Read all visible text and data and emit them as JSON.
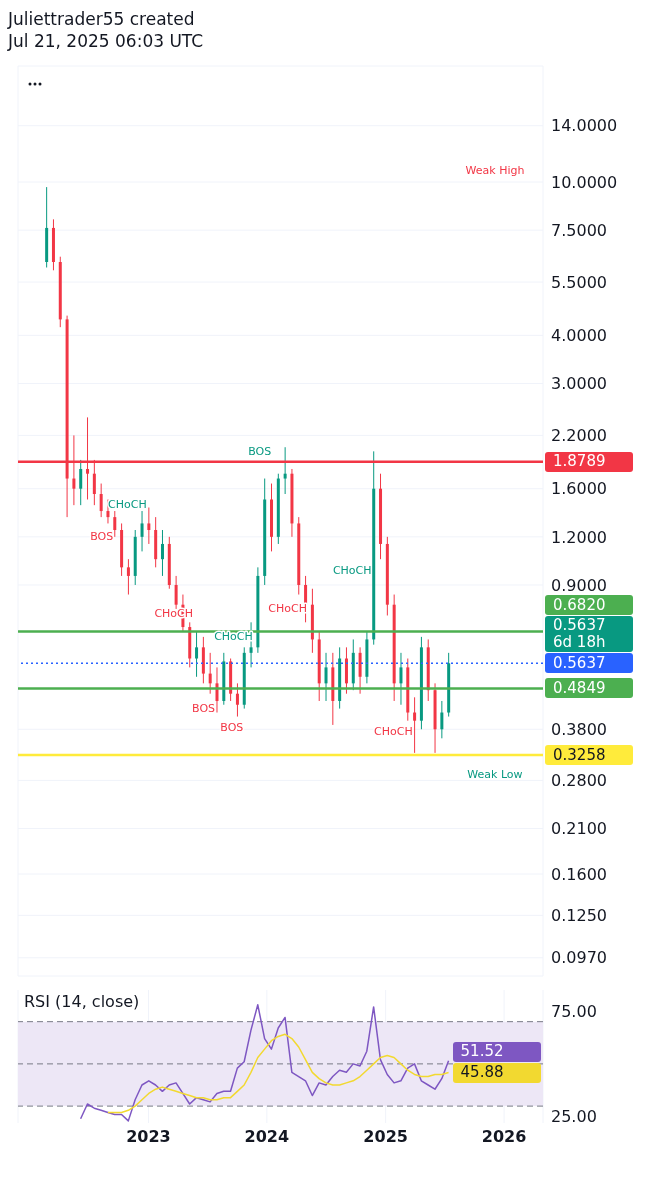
{
  "chart_data": [
    {
      "type": "candlestick",
      "title": "Juliettrader55 created",
      "subtitle": "Jul 21, 2025 06:03 UTC",
      "x": [
        "2022-02-21",
        "2022-03-14",
        "2022-04-04",
        "2022-04-25",
        "2022-05-16",
        "2022-06-06",
        "2022-06-27",
        "2022-07-18",
        "2022-08-08",
        "2022-08-29",
        "2022-09-19",
        "2022-10-10",
        "2022-10-31",
        "2022-11-21",
        "2022-12-12",
        "2023-01-02",
        "2023-01-23",
        "2023-02-13",
        "2023-03-06",
        "2023-03-27",
        "2023-04-17",
        "2023-05-08",
        "2023-05-29",
        "2023-06-19",
        "2023-07-10",
        "2023-07-31",
        "2023-08-21",
        "2023-09-11",
        "2023-10-02",
        "2023-10-23",
        "2023-11-13",
        "2023-12-04",
        "2023-12-25",
        "2024-01-15",
        "2024-02-05",
        "2024-02-26",
        "2024-03-18",
        "2024-04-08",
        "2024-04-29",
        "2024-05-20",
        "2024-06-10",
        "2024-07-01",
        "2024-07-22",
        "2024-08-12",
        "2024-09-02",
        "2024-09-23",
        "2024-10-14",
        "2024-11-04",
        "2024-11-25",
        "2024-12-16",
        "2025-01-06",
        "2025-01-27",
        "2025-02-17",
        "2025-03-10",
        "2025-03-31",
        "2025-04-21",
        "2025-05-12",
        "2025-06-02",
        "2025-06-23",
        "2025-07-14"
      ],
      "ohlc": [
        [
          6.2,
          9.7,
          6.0,
          7.6
        ],
        [
          7.6,
          8.0,
          5.9,
          6.2
        ],
        [
          6.2,
          6.4,
          4.2,
          4.4
        ],
        [
          4.4,
          4.5,
          1.35,
          1.7
        ],
        [
          1.7,
          2.2,
          1.45,
          1.6
        ],
        [
          1.6,
          1.9,
          1.45,
          1.8
        ],
        [
          1.8,
          2.45,
          1.5,
          1.75
        ],
        [
          1.75,
          1.9,
          1.45,
          1.55
        ],
        [
          1.55,
          1.65,
          1.35,
          1.4
        ],
        [
          1.4,
          1.5,
          1.3,
          1.35
        ],
        [
          1.35,
          1.4,
          1.2,
          1.25
        ],
        [
          1.25,
          1.3,
          0.95,
          1.0
        ],
        [
          1.0,
          1.05,
          0.85,
          0.95
        ],
        [
          0.95,
          1.25,
          0.9,
          1.2
        ],
        [
          1.2,
          1.4,
          1.1,
          1.3
        ],
        [
          1.3,
          1.43,
          1.15,
          1.25
        ],
        [
          1.25,
          1.35,
          1.0,
          1.05
        ],
        [
          1.05,
          1.25,
          0.95,
          1.15
        ],
        [
          1.15,
          1.2,
          0.88,
          0.9
        ],
        [
          0.9,
          0.95,
          0.78,
          0.8
        ],
        [
          0.8,
          0.85,
          0.68,
          0.7
        ],
        [
          0.7,
          0.72,
          0.55,
          0.58
        ],
        [
          0.58,
          0.68,
          0.52,
          0.62
        ],
        [
          0.62,
          0.66,
          0.5,
          0.53
        ],
        [
          0.53,
          0.6,
          0.47,
          0.5
        ],
        [
          0.5,
          0.55,
          0.42,
          0.45
        ],
        [
          0.45,
          0.6,
          0.44,
          0.57
        ],
        [
          0.57,
          0.58,
          0.45,
          0.47
        ],
        [
          0.47,
          0.5,
          0.41,
          0.44
        ],
        [
          0.44,
          0.62,
          0.43,
          0.6
        ],
        [
          0.6,
          0.72,
          0.55,
          0.62
        ],
        [
          0.62,
          1.0,
          0.6,
          0.95
        ],
        [
          0.95,
          1.7,
          0.9,
          1.5
        ],
        [
          1.5,
          1.65,
          1.1,
          1.2
        ],
        [
          1.2,
          1.75,
          1.15,
          1.7
        ],
        [
          1.7,
          2.05,
          1.55,
          1.75
        ],
        [
          1.75,
          1.8,
          1.2,
          1.3
        ],
        [
          1.3,
          1.35,
          0.85,
          0.9
        ],
        [
          0.9,
          0.95,
          0.72,
          0.8
        ],
        [
          0.8,
          0.88,
          0.6,
          0.65
        ],
        [
          0.65,
          0.68,
          0.45,
          0.5
        ],
        [
          0.5,
          0.6,
          0.45,
          0.55
        ],
        [
          0.55,
          0.6,
          0.39,
          0.45
        ],
        [
          0.45,
          0.62,
          0.43,
          0.58
        ],
        [
          0.58,
          0.62,
          0.47,
          0.5
        ],
        [
          0.5,
          0.65,
          0.48,
          0.6
        ],
        [
          0.6,
          0.62,
          0.47,
          0.52
        ],
        [
          0.52,
          0.68,
          0.5,
          0.65
        ],
        [
          0.65,
          2.0,
          0.63,
          1.6
        ],
        [
          1.6,
          1.75,
          1.05,
          1.15
        ],
        [
          1.15,
          1.2,
          0.75,
          0.8
        ],
        [
          0.8,
          0.85,
          0.45,
          0.5
        ],
        [
          0.5,
          0.6,
          0.44,
          0.55
        ],
        [
          0.55,
          0.58,
          0.4,
          0.42
        ],
        [
          0.42,
          0.46,
          0.33,
          0.4
        ],
        [
          0.4,
          0.66,
          0.38,
          0.62
        ],
        [
          0.62,
          0.65,
          0.45,
          0.48
        ],
        [
          0.48,
          0.5,
          0.33,
          0.38
        ],
        [
          0.38,
          0.45,
          0.36,
          0.42
        ],
        [
          0.42,
          0.6,
          0.41,
          0.5637
        ]
      ],
      "colors": [
        "#089981",
        "#f23645",
        "#f23645",
        "#f23645",
        "#f23645",
        "#089981",
        "#f23645",
        "#f23645",
        "#f23645",
        "#f23645",
        "#f23645",
        "#f23645",
        "#f23645",
        "#089981",
        "#089981",
        "#f23645",
        "#f23645",
        "#089981",
        "#f23645",
        "#f23645",
        "#f23645",
        "#f23645",
        "#089981",
        "#f23645",
        "#f23645",
        "#f23645",
        "#089981",
        "#f23645",
        "#f23645",
        "#089981",
        "#089981",
        "#089981",
        "#089981",
        "#f23645",
        "#089981",
        "#089981",
        "#f23645",
        "#f23645",
        "#f23645",
        "#f23645",
        "#f23645",
        "#089981",
        "#f23645",
        "#089981",
        "#f23645",
        "#089981",
        "#f23645",
        "#089981",
        "#089981",
        "#f23645",
        "#f23645",
        "#f23645",
        "#089981",
        "#f23645",
        "#f23645",
        "#089981",
        "#f23645",
        "#f23645",
        "#089981",
        "#089981"
      ],
      "log": true,
      "ylim": [
        0.087,
        20
      ],
      "yticks": [
        {
          "value": 14,
          "label": "14.0000"
        },
        {
          "value": 10,
          "label": "10.0000"
        },
        {
          "value": 7.5,
          "label": "7.5000"
        },
        {
          "value": 5.5,
          "label": "5.5000"
        },
        {
          "value": 4,
          "label": "4.0000"
        },
        {
          "value": 3,
          "label": "3.0000"
        },
        {
          "value": 2.2,
          "label": "2.2000"
        },
        {
          "value": 1.6,
          "label": "1.6000"
        },
        {
          "value": 1.2,
          "label": "1.2000"
        },
        {
          "value": 0.9,
          "label": "0.9000"
        },
        {
          "value": 0.38,
          "label": "0.3800"
        },
        {
          "value": 0.28,
          "label": "0.2800"
        },
        {
          "value": 0.21,
          "label": "0.2100"
        },
        {
          "value": 0.16,
          "label": "0.1600"
        },
        {
          "value": 0.125,
          "label": "0.1250"
        },
        {
          "value": 0.097,
          "label": "0.0970"
        }
      ],
      "xlim": [
        "2021-11-25",
        "2026-05-01"
      ],
      "xticks": [
        "2023",
        "2024",
        "2025",
        "2026"
      ],
      "tick_labels": "y",
      "grid": true,
      "ref_lines": [
        {
          "axis": "y",
          "value": 1.8789,
          "label": "1.8789",
          "color": "#f23645"
        },
        {
          "axis": "y",
          "value": 0.682,
          "label": "0.6820",
          "color": "#4caf50"
        },
        {
          "axis": "y",
          "value": 0.5637,
          "label": "0.5637",
          "color": "#2962ff",
          "line_style": "dotted"
        },
        {
          "axis": "y",
          "value": 0.4849,
          "label": "0.4849",
          "color": "#4caf50"
        },
        {
          "axis": "y",
          "value": 0.3258,
          "label": "0.3258",
          "color": "#ffeb3b"
        }
      ],
      "annotations": [
        "0.5637 6d 18h",
        "Weak High",
        "Weak Low",
        "BOS",
        "CHoCH",
        "CHoCH",
        "CHoCH",
        "BOS",
        "BOS",
        "BOS",
        "CHoCH",
        "CHoCH",
        "CHoCH"
      ]
    },
    {
      "type": "line",
      "title": "RSI (14, close)",
      "x": [
        "2022-06-06",
        "2022-06-27",
        "2022-07-18",
        "2022-08-08",
        "2022-08-29",
        "2022-09-19",
        "2022-10-10",
        "2022-10-31",
        "2022-11-21",
        "2022-12-12",
        "2023-01-02",
        "2023-01-23",
        "2023-02-13",
        "2023-03-06",
        "2023-03-27",
        "2023-04-17",
        "2023-05-08",
        "2023-05-29",
        "2023-06-19",
        "2023-07-10",
        "2023-07-31",
        "2023-08-21",
        "2023-09-11",
        "2023-10-02",
        "2023-10-23",
        "2023-11-13",
        "2023-12-04",
        "2023-12-25",
        "2024-01-15",
        "2024-02-05",
        "2024-02-26",
        "2024-03-18",
        "2024-04-08",
        "2024-04-29",
        "2024-05-20",
        "2024-06-10",
        "2024-07-01",
        "2024-07-22",
        "2024-08-12",
        "2024-09-02",
        "2024-09-23",
        "2024-10-14",
        "2024-11-04",
        "2024-11-25",
        "2024-12-16",
        "2025-01-06",
        "2025-01-27",
        "2025-02-17",
        "2025-03-10",
        "2025-03-31",
        "2025-04-21",
        "2025-05-12",
        "2025-06-02",
        "2025-06-23",
        "2025-07-14"
      ],
      "series": [
        {
          "color": "#7e57c2",
          "values": [
            24,
            31,
            29,
            28,
            27,
            26,
            26,
            23,
            33,
            40,
            42,
            40,
            37,
            40,
            41,
            36,
            31,
            34,
            33,
            32,
            36,
            37,
            37,
            48,
            51,
            66,
            78,
            62,
            57,
            67,
            72,
            46,
            44,
            42,
            35,
            41,
            40,
            44,
            47,
            46,
            50,
            49,
            56,
            77,
            52,
            45,
            41,
            42,
            48,
            50,
            42,
            40,
            38,
            43,
            51.52
          ],
          "value_labels": [
            null,
            null,
            null,
            null,
            null,
            null,
            null,
            null,
            null,
            null,
            null,
            null,
            null,
            null,
            null,
            null,
            null,
            null,
            null,
            null,
            null,
            null,
            null,
            null,
            null,
            null,
            null,
            null,
            null,
            null,
            null,
            null,
            null,
            null,
            null,
            null,
            null,
            null,
            null,
            null,
            null,
            null,
            null,
            null,
            null,
            null,
            null,
            null,
            null,
            null,
            null,
            null,
            null,
            null,
            "51.52"
          ]
        },
        {
          "color": "#f2d930",
          "values": [
            null,
            null,
            null,
            null,
            27,
            27,
            27,
            28,
            30,
            33,
            36,
            38,
            39,
            38,
            37,
            36,
            35,
            34,
            34,
            33,
            33,
            34,
            34,
            37,
            40,
            46,
            53,
            57,
            61,
            63,
            64,
            62,
            58,
            52,
            46,
            43,
            41,
            40,
            40,
            41,
            42,
            44,
            47,
            50,
            53,
            54,
            53,
            50,
            47,
            45,
            44,
            44,
            45,
            45,
            45.88
          ],
          "value_labels": [
            null,
            null,
            null,
            null,
            null,
            null,
            null,
            null,
            null,
            null,
            null,
            null,
            null,
            null,
            null,
            null,
            null,
            null,
            null,
            null,
            null,
            null,
            null,
            null,
            null,
            null,
            null,
            null,
            null,
            null,
            null,
            null,
            null,
            null,
            null,
            null,
            null,
            null,
            null,
            null,
            null,
            null,
            null,
            null,
            null,
            null,
            null,
            null,
            null,
            null,
            null,
            null,
            null,
            null,
            "45.88"
          ]
        }
      ],
      "ylim": [
        22,
        85
      ],
      "yticks": [
        {
          "value": 75,
          "label": "75.00"
        },
        {
          "value": 25,
          "label": "25.00"
        }
      ],
      "xlim": [
        "2021-11-25",
        "2026-05-01"
      ],
      "xticks": [
        "2023",
        "2024",
        "2025",
        "2026"
      ],
      "grid": "x",
      "ref_lines": [
        {
          "axis": "y",
          "value": 70,
          "color": "#787b86",
          "line_style": "dashed"
        },
        {
          "axis": "y",
          "value": 50,
          "color": "#787b86",
          "line_style": "dashed"
        },
        {
          "axis": "y",
          "value": 30,
          "color": "#787b86",
          "line_style": "dashed"
        }
      ],
      "bands": [
        {
          "axis": "y",
          "from": 30,
          "to": 70,
          "color": "#ede7f6"
        }
      ]
    }
  ]
}
